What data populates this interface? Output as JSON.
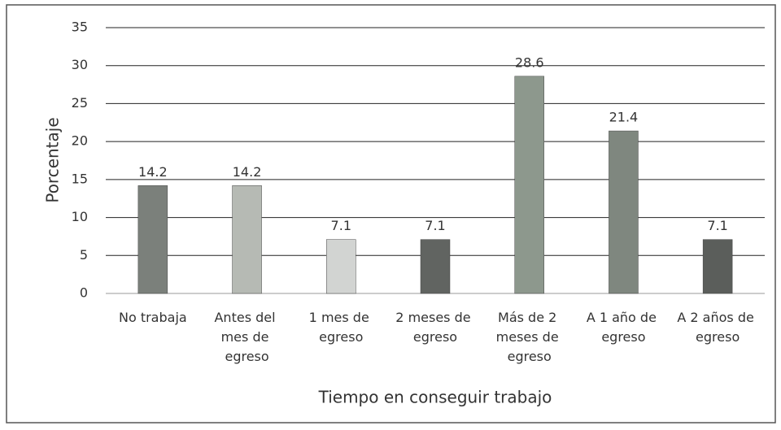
{
  "chart_data": {
    "type": "bar",
    "categories": [
      "No trabaja",
      "Antes del mes de egreso",
      "1 mes de egreso",
      "2 meses de egreso",
      "Más de 2 meses de egreso",
      "A 1 año de egreso",
      "A 2 años de egreso"
    ],
    "values": [
      14.2,
      14.2,
      7.1,
      7.1,
      28.6,
      21.4,
      7.1
    ],
    "colors": [
      "#7b807b",
      "#b6bab4",
      "#d2d4d2",
      "#616461",
      "#8d988d",
      "#7f877f",
      "#5b5e5b"
    ],
    "x_label": "Tiempo en conseguir trabajo",
    "y_label": "Porcentaje",
    "ylim": [
      0,
      35
    ],
    "yticks": [
      0,
      5,
      10,
      15,
      20,
      25,
      30,
      35
    ],
    "grid": true
  }
}
